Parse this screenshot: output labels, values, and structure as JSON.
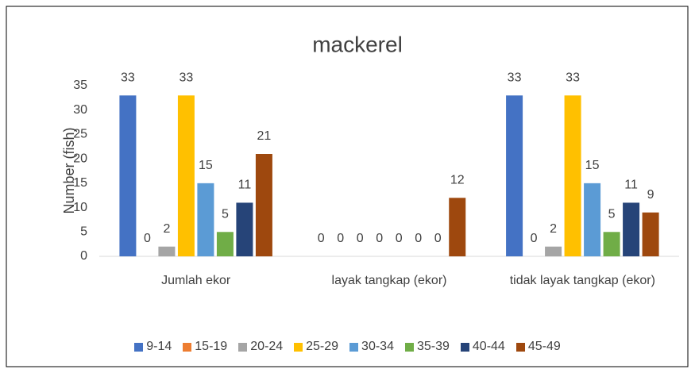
{
  "chart_data": {
    "type": "bar",
    "title": "mackerel",
    "y_label": "Number (fish)",
    "categories": [
      "Jumlah  ekor",
      "layak tangkap (ekor)",
      "tidak layak tangkap (ekor)"
    ],
    "series": [
      {
        "name": "9-14",
        "color": "#4472c4",
        "values": [
          33,
          0,
          33
        ]
      },
      {
        "name": "15-19",
        "color": "#ed7d31",
        "values": [
          0,
          0,
          0
        ]
      },
      {
        "name": "20-24",
        "color": "#a5a5a5",
        "values": [
          2,
          0,
          2
        ]
      },
      {
        "name": "25-29",
        "color": "#ffc000",
        "values": [
          33,
          0,
          33
        ]
      },
      {
        "name": "30-34",
        "color": "#5b9bd5",
        "values": [
          15,
          0,
          15
        ]
      },
      {
        "name": "35-39",
        "color": "#70ad47",
        "values": [
          5,
          0,
          5
        ]
      },
      {
        "name": "40-44",
        "color": "#264478",
        "values": [
          11,
          0,
          11
        ]
      },
      {
        "name": "45-49",
        "color": "#9e480e",
        "values": [
          21,
          12,
          9
        ]
      }
    ],
    "ylim": [
      0,
      35
    ],
    "yticks": [
      0,
      5,
      10,
      15,
      20,
      25,
      30,
      35
    ],
    "grid": false,
    "legend": "bottom"
  }
}
